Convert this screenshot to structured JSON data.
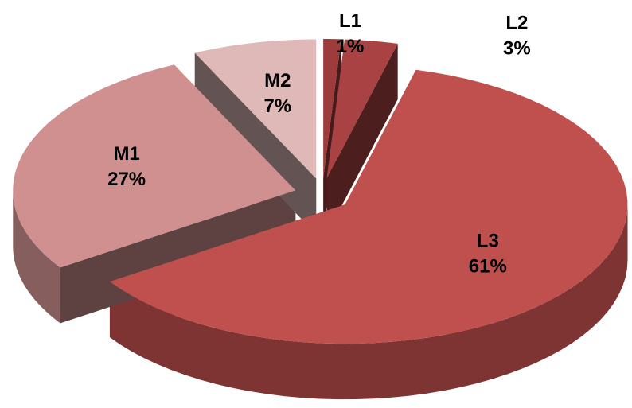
{
  "chart_data": {
    "type": "pie",
    "categories": [
      "L1",
      "L2",
      "L3",
      "M1",
      "M2"
    ],
    "values": [
      1,
      3,
      61,
      27,
      7
    ],
    "value_labels": [
      "1%",
      "3%",
      "61%",
      "27%",
      "7%"
    ],
    "colors": [
      "#9e3b3b",
      "#a94343",
      "#c0504d",
      "#d09090",
      "#dfb8b8"
    ]
  }
}
